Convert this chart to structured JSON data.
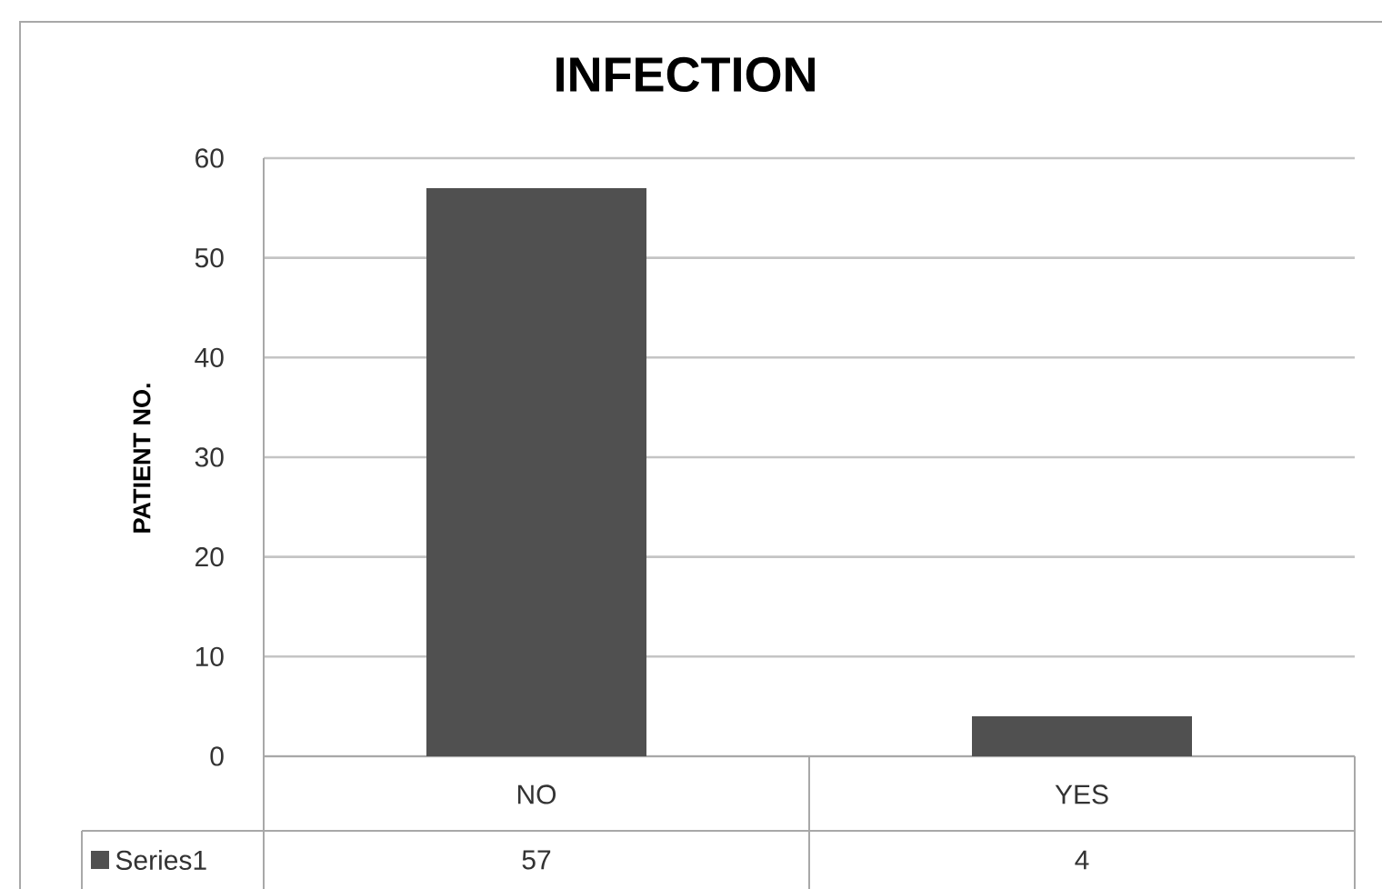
{
  "chart_data": {
    "type": "bar",
    "title": "INFECTION",
    "ylabel": "PATIENT NO.",
    "categories": [
      "NO",
      "YES"
    ],
    "series": [
      {
        "name": "Series1",
        "color": "#505050",
        "values": [
          57,
          4
        ]
      }
    ],
    "ylim": [
      0,
      60
    ],
    "yticks": [
      0,
      10,
      20,
      30,
      40,
      50,
      60
    ],
    "grid": "y",
    "legend": "bottom",
    "data_labels": true
  }
}
